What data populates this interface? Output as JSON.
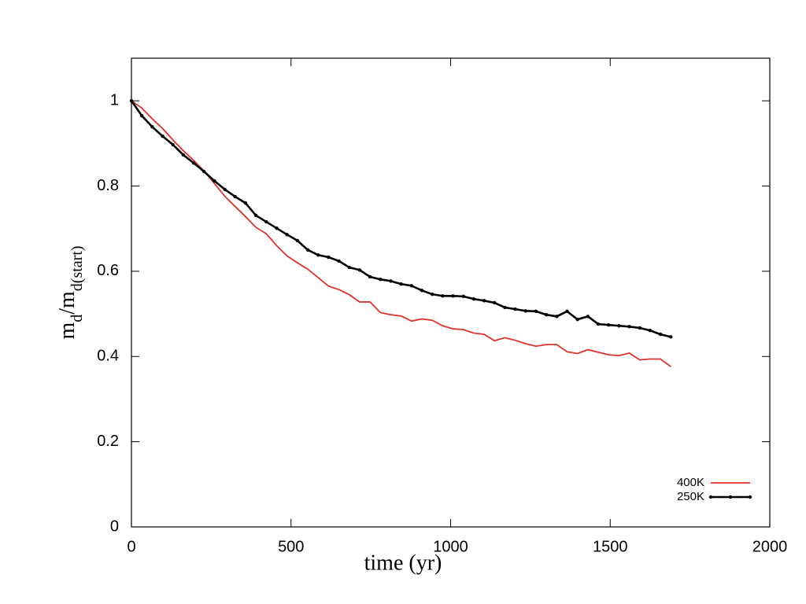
{
  "chart_data": {
    "type": "line",
    "x_label": "time (yr)",
    "y_label": [
      {
        "text": "m"
      },
      {
        "text": "d",
        "sub": true
      },
      {
        "text": "/m"
      },
      {
        "text": "d(start)",
        "sub": true
      }
    ],
    "x": [
      0,
      32.5,
      65,
      97.5,
      130,
      162.5,
      195,
      227.5,
      260,
      292.5,
      325,
      357.5,
      390,
      422.5,
      455,
      487.5,
      520,
      552.5,
      585,
      617.5,
      650,
      682.5,
      715,
      747.5,
      780,
      812.5,
      845,
      877.5,
      910,
      942.5,
      975,
      1007.5,
      1040,
      1072.5,
      1105,
      1137.5,
      1170,
      1202.5,
      1235,
      1267.5,
      1300,
      1332.5,
      1365,
      1397.5,
      1430,
      1462.5,
      1495,
      1527.5,
      1560,
      1592.5,
      1625,
      1657.5,
      1690
    ],
    "series": [
      {
        "name": "400K",
        "color": "#e0322a",
        "markers": false,
        "values": [
          1.0,
          0.983,
          0.958,
          0.935,
          0.908,
          0.883,
          0.86,
          0.835,
          0.806,
          0.776,
          0.752,
          0.728,
          0.703,
          0.688,
          0.66,
          0.636,
          0.62,
          0.605,
          0.585,
          0.565,
          0.557,
          0.545,
          0.528,
          0.528,
          0.503,
          0.498,
          0.495,
          0.483,
          0.488,
          0.485,
          0.472,
          0.465,
          0.463,
          0.455,
          0.452,
          0.437,
          0.444,
          0.438,
          0.43,
          0.424,
          0.428,
          0.428,
          0.411,
          0.407,
          0.416,
          0.41,
          0.404,
          0.402,
          0.408,
          0.392,
          0.394,
          0.394,
          0.376
        ]
      },
      {
        "name": "250K",
        "color": "#000000",
        "markers": true,
        "values": [
          1.0,
          0.965,
          0.939,
          0.917,
          0.897,
          0.873,
          0.854,
          0.834,
          0.812,
          0.792,
          0.775,
          0.76,
          0.731,
          0.716,
          0.701,
          0.686,
          0.672,
          0.65,
          0.638,
          0.633,
          0.624,
          0.609,
          0.603,
          0.587,
          0.581,
          0.577,
          0.57,
          0.566,
          0.555,
          0.546,
          0.542,
          0.542,
          0.541,
          0.535,
          0.531,
          0.526,
          0.515,
          0.511,
          0.507,
          0.506,
          0.498,
          0.494,
          0.506,
          0.487,
          0.494,
          0.476,
          0.474,
          0.472,
          0.47,
          0.467,
          0.461,
          0.452,
          0.446
        ]
      }
    ],
    "xlim": [
      0,
      2000
    ],
    "xticks": [
      0,
      500,
      1000,
      1500,
      2000
    ],
    "ylim": [
      0,
      1.1
    ],
    "yticks": [
      0,
      0.2,
      0.4,
      0.6,
      0.8,
      1
    ],
    "legend": "lower right",
    "grid": false
  }
}
